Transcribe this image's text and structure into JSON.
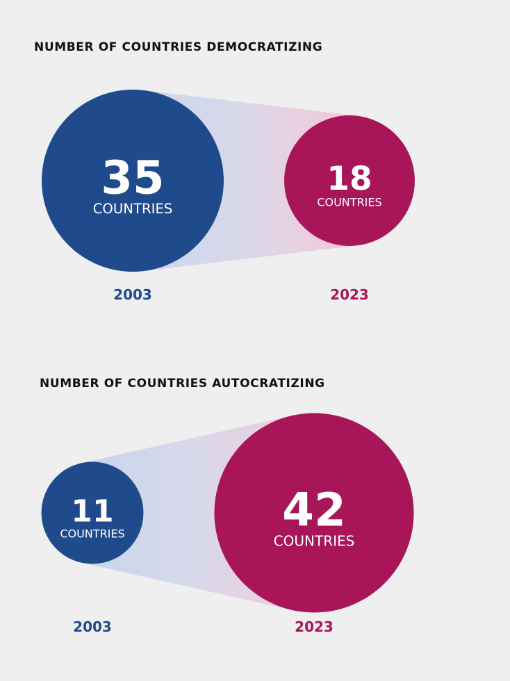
{
  "chart_data": [
    {
      "type": "bubble",
      "title": "NUMBER OF COUNTRIES DEMOCRATIZING",
      "unit_label": "COUNTRIES",
      "categories": [
        "2003",
        "2023"
      ],
      "values": [
        35,
        18
      ],
      "colors": [
        "#1f4a8c",
        "#a81559"
      ]
    },
    {
      "type": "bubble",
      "title": "NUMBER OF COUNTRIES AUTOCRATIZING",
      "unit_label": "COUNTRIES",
      "categories": [
        "2003",
        "2023"
      ],
      "values": [
        11,
        42
      ],
      "colors": [
        "#1f4a8c",
        "#a81559"
      ]
    }
  ]
}
